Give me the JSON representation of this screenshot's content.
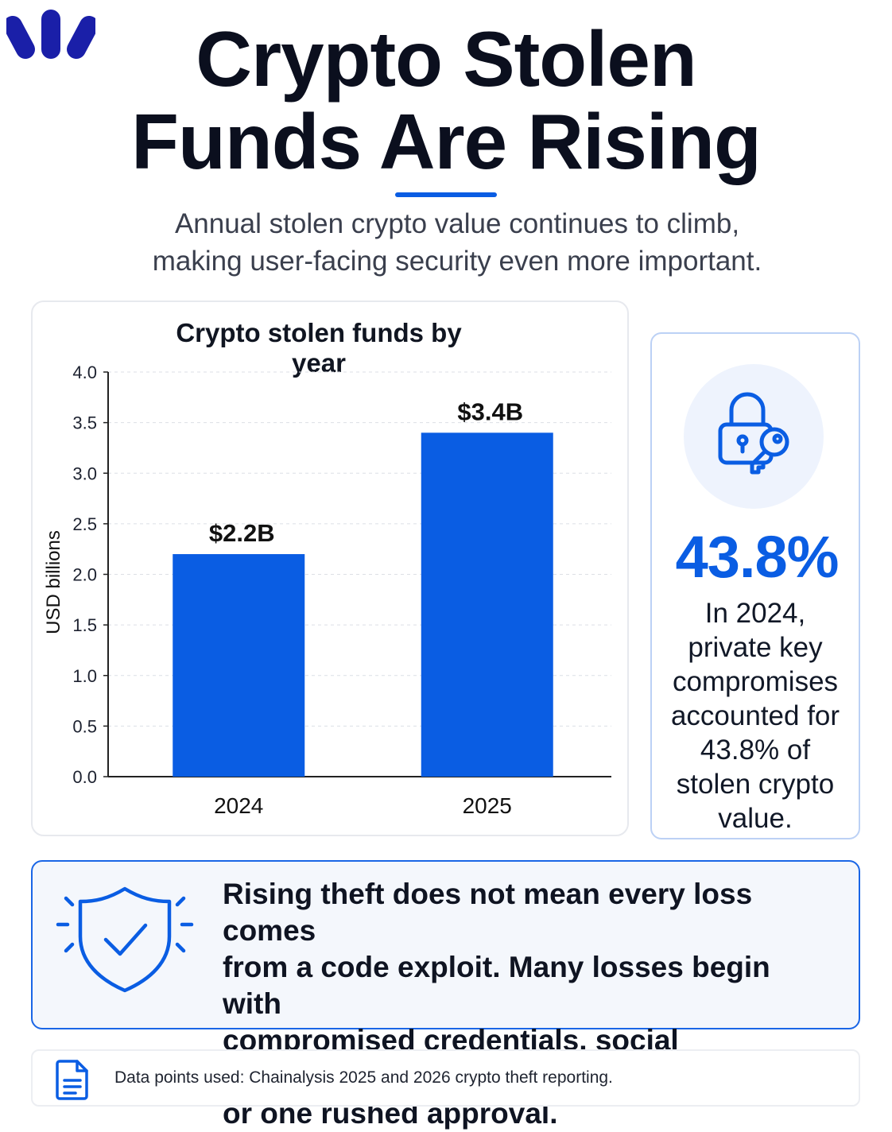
{
  "header": {
    "title_lines": [
      "Crypto Stolen",
      "Funds Are Rising"
    ],
    "subtitle_lines": [
      "Annual stolen crypto value continues to climb,",
      "making user-facing security even more important."
    ]
  },
  "colors": {
    "accent": "#0a5de3",
    "bar": "#0a5de3",
    "text": "#111827"
  },
  "chart_data": {
    "type": "bar",
    "title": "Crypto stolen funds by year",
    "xlabel": "",
    "ylabel": "USD billions",
    "categories": [
      "2024",
      "2025"
    ],
    "values": [
      2.2,
      3.4
    ],
    "data_labels": [
      "$2.2B",
      "$3.4B"
    ],
    "ylim": [
      0,
      4
    ],
    "yticks": [
      "0.0",
      "0.5",
      "1.0",
      "1.5",
      "2.0",
      "2.5",
      "3.0",
      "3.5",
      "4.0"
    ],
    "grid": true,
    "color": "#0a5de3"
  },
  "stat": {
    "icon": "lock-key-icon",
    "value": "43.8%",
    "text_lines": [
      "In 2024,",
      "private key",
      "compromises",
      "accounted for",
      "43.8% of",
      "stolen crypto",
      "value."
    ]
  },
  "callout": {
    "icon": "shield-check-icon",
    "lines": [
      "Rising theft does not mean every loss comes",
      "from a code exploit. Many losses begin with",
      "compromised credentials, social engineering,",
      "or one rushed approval."
    ]
  },
  "footnote": {
    "icon": "document-icon",
    "text": "Data points used: Chainalysis 2025 and 2026 crypto theft reporting."
  }
}
